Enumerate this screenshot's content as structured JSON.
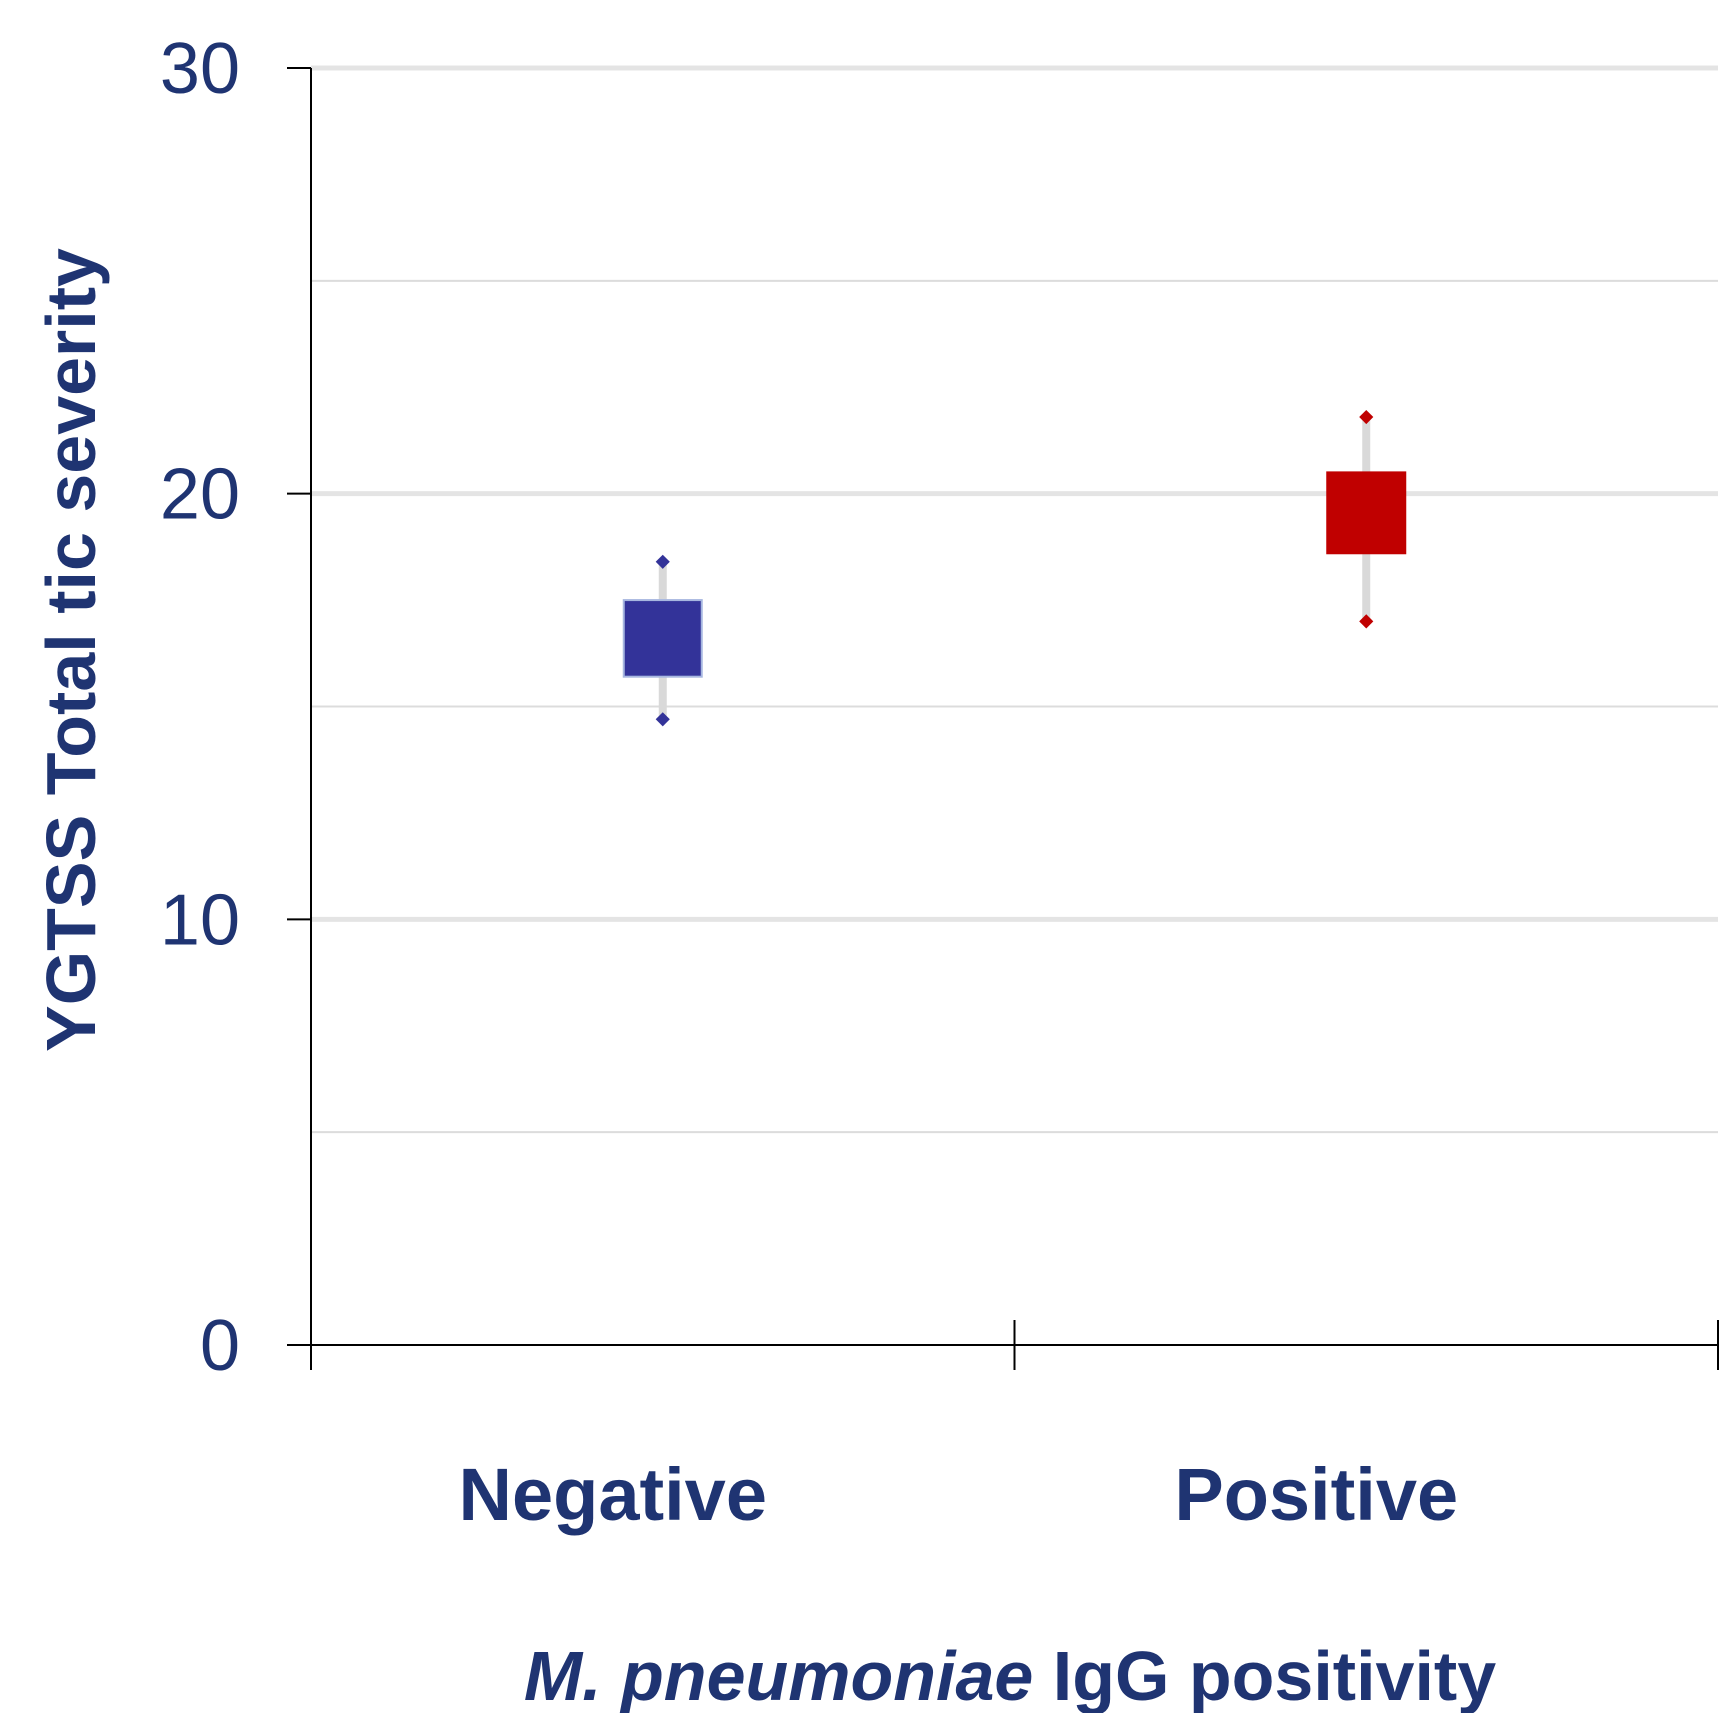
{
  "chart_data": {
    "type": "box",
    "categories": [
      "Negative",
      "Positive"
    ],
    "series": [
      {
        "category": "Negative",
        "color": "#333399",
        "whisker_low": 14.7,
        "q1": 15.7,
        "q3": 17.5,
        "whisker_high": 18.4
      },
      {
        "category": "Positive",
        "color": "#c00000",
        "whisker_low": 17.0,
        "q1": 18.6,
        "q3": 20.5,
        "whisker_high": 21.8
      }
    ],
    "ylim": [
      0,
      30
    ],
    "yticks": [
      0,
      10,
      20,
      30
    ],
    "ylabel": "YGTSS Total tic severity",
    "xlabel_italic": "M. pneumoniae",
    "xlabel_rest": " IgG positivity",
    "grid": true
  }
}
